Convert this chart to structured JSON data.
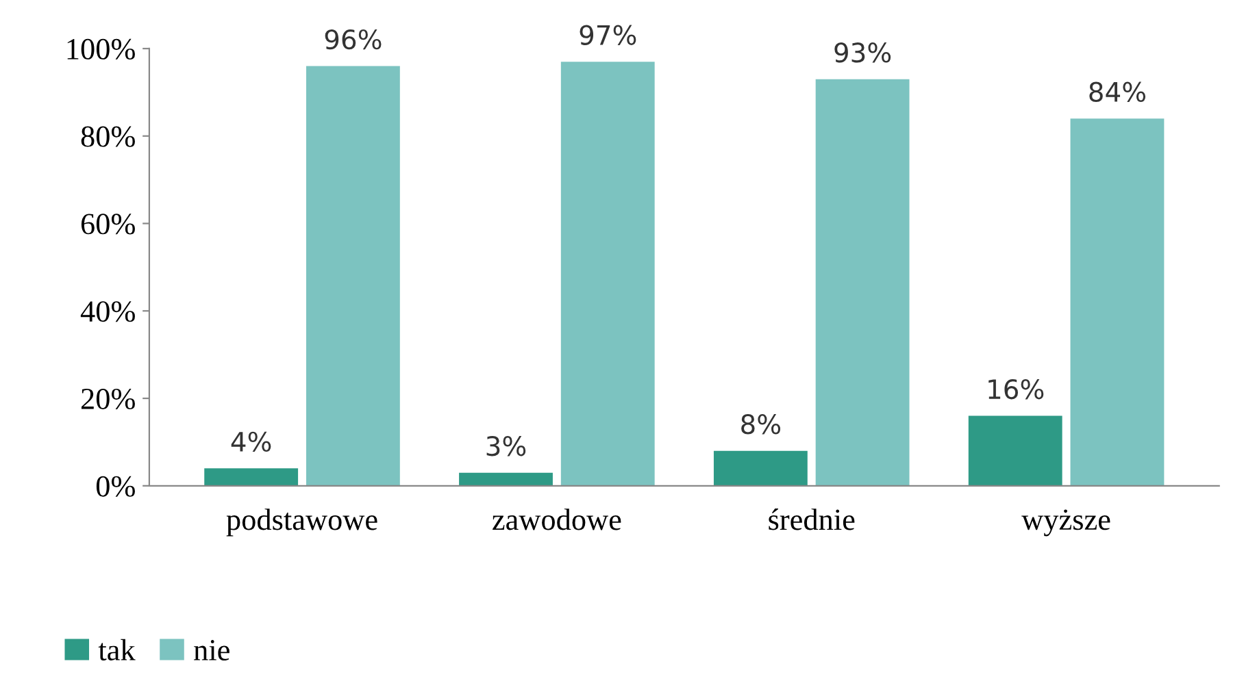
{
  "chart_data": {
    "type": "bar",
    "categories": [
      "podstawowe",
      "zawodowe",
      "średnie",
      "wyższe"
    ],
    "series": [
      {
        "name": "tak",
        "color": "#2e9a86",
        "values": [
          4,
          3,
          8,
          16
        ]
      },
      {
        "name": "nie",
        "color": "#7cc3c0",
        "values": [
          96,
          97,
          93,
          84
        ]
      }
    ],
    "ylim": [
      0,
      100
    ],
    "yticks": [
      {
        "value": 0,
        "label": "0%"
      },
      {
        "value": 20,
        "label": "20%"
      },
      {
        "value": 40,
        "label": "40%"
      },
      {
        "value": 60,
        "label": "60%"
      },
      {
        "value": 80,
        "label": "80%"
      },
      {
        "value": 100,
        "label": "100%"
      }
    ],
    "value_labels": [
      [
        "4%",
        "3%",
        "8%",
        "16%"
      ],
      [
        "96%",
        "97%",
        "93%",
        "84%"
      ]
    ],
    "grid": false,
    "legend": "bottom left"
  }
}
